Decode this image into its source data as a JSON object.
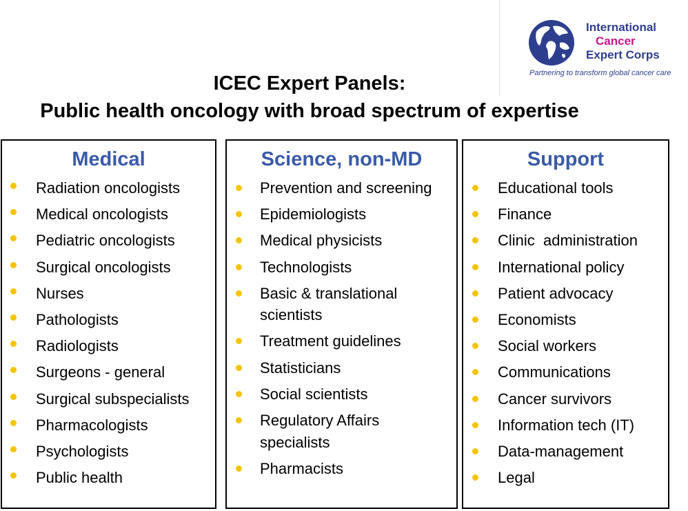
{
  "logo": {
    "line1": "International",
    "line2": "Cancer",
    "line3": "Expert Corps",
    "tagline": "Partnering to transform global cancer care"
  },
  "title": {
    "line1": "ICEC Expert Panels:",
    "line2": "Public health oncology with broad spectrum of expertise"
  },
  "panels": {
    "medical": {
      "heading": "Medical",
      "items": [
        "Radiation oncologists",
        "Medical oncologists",
        "Pediatric oncologists",
        "Surgical oncologists",
        "Nurses",
        "Pathologists",
        "Radiologists",
        "Surgeons - general",
        "Surgical subspecialists",
        "Pharmacologists",
        "Psychologists",
        "Public health"
      ]
    },
    "science": {
      "heading": "Science, non-MD",
      "items": [
        "Prevention and screening",
        "Epidemiologists",
        "Medical physicists",
        "Technologists",
        "Basic & translational scientists",
        "Treatment guidelines",
        "Statisticians",
        "Social scientists",
        "Regulatory Affairs specialists",
        "Pharmacists"
      ]
    },
    "support": {
      "heading": "Support",
      "items": [
        "Educational tools",
        "Finance",
        "Clinic  administration",
        "International policy",
        "Patient advocacy",
        "Economists",
        "Social workers",
        "Communications",
        "Cancer survivors",
        "Information tech (IT)",
        "Data-management",
        "Legal"
      ]
    }
  },
  "colors": {
    "heading_blue": "#3a5aa8",
    "bullet_yellow": "#f5c400",
    "logo_navy": "#2e3e8f",
    "logo_magenta": "#c4168a"
  }
}
